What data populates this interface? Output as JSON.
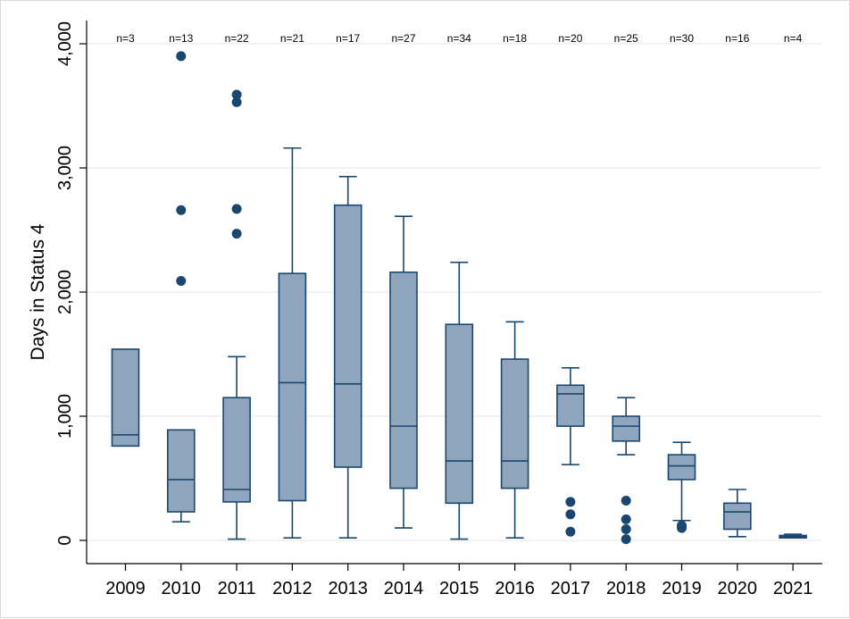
{
  "chart_data": {
    "type": "box",
    "title": "",
    "xlabel": "",
    "ylabel": "Days in Status 4",
    "ylim": [
      0,
      4000
    ],
    "yticks": [
      0,
      1000,
      2000,
      3000,
      4000
    ],
    "ytick_labels": [
      "0",
      "1,000",
      "2,000",
      "3,000",
      "4,000"
    ],
    "grid": true,
    "colors": {
      "box_fill": "#8fa5bd",
      "box_stroke": "#1a476f",
      "outlier": "#1a476f",
      "grid": "#e6e6e6",
      "axis": "#000000"
    },
    "boxes": [
      {
        "category": "2009",
        "n_label": "n=3",
        "min": 760,
        "q1": 760,
        "median": 850,
        "q3": 1540,
        "max": 1540,
        "outliers": []
      },
      {
        "category": "2010",
        "n_label": "n=13",
        "min": 150,
        "q1": 230,
        "median": 490,
        "q3": 890,
        "max": 890,
        "outliers": [
          2090,
          2660,
          3900
        ]
      },
      {
        "category": "2011",
        "n_label": "n=22",
        "min": 10,
        "q1": 310,
        "median": 410,
        "q3": 1150,
        "max": 1480,
        "outliers": [
          2470,
          2670,
          3530,
          3590
        ]
      },
      {
        "category": "2012",
        "n_label": "n=21",
        "min": 20,
        "q1": 320,
        "median": 1270,
        "q3": 2150,
        "max": 3160,
        "outliers": []
      },
      {
        "category": "2013",
        "n_label": "n=17",
        "min": 20,
        "q1": 590,
        "median": 1260,
        "q3": 2700,
        "max": 2930,
        "outliers": []
      },
      {
        "category": "2014",
        "n_label": "n=27",
        "min": 100,
        "q1": 420,
        "median": 920,
        "q3": 2160,
        "max": 2610,
        "outliers": []
      },
      {
        "category": "2015",
        "n_label": "n=34",
        "min": 10,
        "q1": 300,
        "median": 640,
        "q3": 1740,
        "max": 2240,
        "outliers": []
      },
      {
        "category": "2016",
        "n_label": "n=18",
        "min": 20,
        "q1": 420,
        "median": 640,
        "q3": 1460,
        "max": 1760,
        "outliers": []
      },
      {
        "category": "2017",
        "n_label": "n=20",
        "min": 610,
        "q1": 920,
        "median": 1180,
        "q3": 1250,
        "max": 1390,
        "outliers": [
          70,
          210,
          310
        ]
      },
      {
        "category": "2018",
        "n_label": "n=25",
        "min": 690,
        "q1": 800,
        "median": 920,
        "q3": 1000,
        "max": 1150,
        "outliers": [
          10,
          90,
          170,
          320
        ]
      },
      {
        "category": "2019",
        "n_label": "n=30",
        "min": 160,
        "q1": 490,
        "median": 600,
        "q3": 690,
        "max": 790,
        "outliers": [
          100,
          120
        ]
      },
      {
        "category": "2020",
        "n_label": "n=16",
        "min": 30,
        "q1": 90,
        "median": 230,
        "q3": 300,
        "max": 410,
        "outliers": []
      },
      {
        "category": "2021",
        "n_label": "n=4",
        "min": 20,
        "q1": 20,
        "median": 30,
        "q3": 40,
        "max": 50,
        "outliers": []
      }
    ]
  }
}
